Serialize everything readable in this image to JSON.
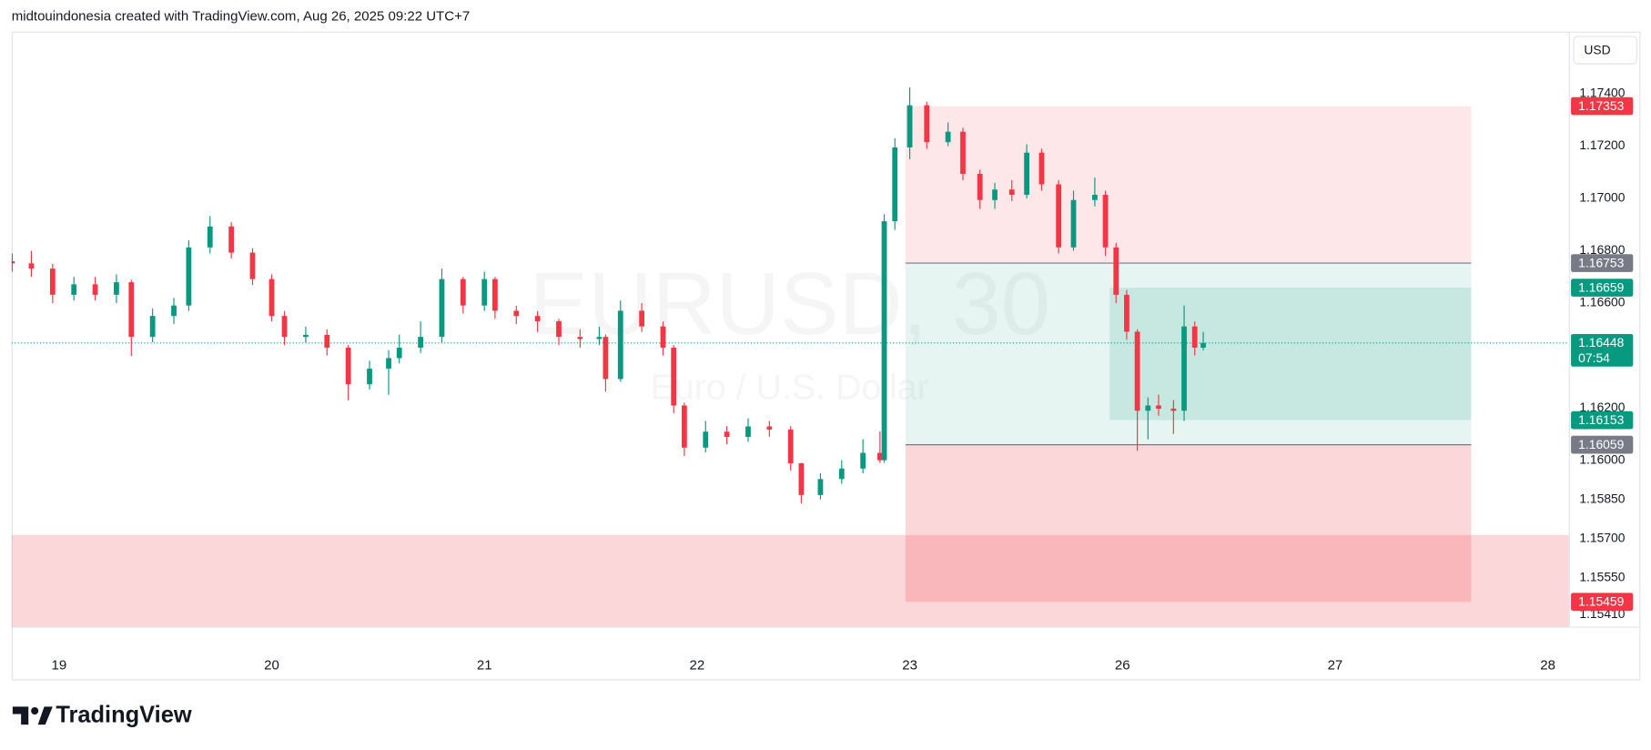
{
  "header": "midtouindonesia created with TradingView.com, Aug 26, 2025 09:22 UTC+7",
  "currency": "USD",
  "logo": "TradingView",
  "chart_data": {
    "type": "candlestick",
    "symbol": "EURUSD, 30",
    "description": "Euro / U.S. Dollar",
    "up_color": "#089981",
    "down_color": "#f23645",
    "xlim": [
      -0.223,
      7.099
    ],
    "ylim": [
      1.15364,
      1.17637
    ],
    "xticks": [
      {
        "value": 0,
        "label": "19"
      },
      {
        "value": 1,
        "label": "20"
      },
      {
        "value": 2,
        "label": "21"
      },
      {
        "value": 3,
        "label": "22"
      },
      {
        "value": 4,
        "label": "23"
      },
      {
        "value": 5,
        "label": "26"
      },
      {
        "value": 6,
        "label": "27"
      },
      {
        "value": 7,
        "label": "28"
      }
    ],
    "yticks": [
      {
        "value": 1.174,
        "label": "1.17400"
      },
      {
        "value": 1.172,
        "label": "1.17200"
      },
      {
        "value": 1.17,
        "label": "1.17000"
      },
      {
        "value": 1.168,
        "label": "1.16800"
      },
      {
        "value": 1.166,
        "label": "1.16600"
      },
      {
        "value": 1.162,
        "label": "1.16200"
      },
      {
        "value": 1.16,
        "label": "1.16000"
      },
      {
        "value": 1.1585,
        "label": "1.15850"
      },
      {
        "value": 1.157,
        "label": "1.15700"
      },
      {
        "value": 1.1555,
        "label": "1.15550"
      },
      {
        "value": 1.1541,
        "label": "1.15410"
      }
    ],
    "candles": {
      "x": [
        -0.22,
        -0.13,
        -0.03,
        0.07,
        0.17,
        0.27,
        0.34,
        0.44,
        0.54,
        0.61,
        0.71,
        0.81,
        0.91,
        1.0,
        1.06,
        1.16,
        1.26,
        1.36,
        1.46,
        1.55,
        1.6,
        1.7,
        1.8,
        1.9,
        2.0,
        2.05,
        2.15,
        2.25,
        2.35,
        2.45,
        2.54,
        2.57,
        2.64,
        2.74,
        2.84,
        2.89,
        2.94,
        3.04,
        3.14,
        3.24,
        3.34,
        3.44,
        3.49,
        3.58,
        3.68,
        3.78,
        3.86,
        3.88,
        3.93,
        4.0,
        4.08,
        4.18,
        4.25,
        4.33,
        4.4,
        4.48,
        4.55,
        4.62,
        4.7,
        4.77,
        4.87,
        4.92,
        4.97,
        5.02,
        5.07,
        5.12,
        5.17,
        5.24,
        5.29,
        5.34,
        5.38
      ],
      "open": [
        1.1676,
        1.16752,
        1.16732,
        1.16632,
        1.16672,
        1.16632,
        1.1668,
        1.16471,
        1.16551,
        1.16591,
        1.16813,
        1.16893,
        1.16793,
        1.16692,
        1.16551,
        1.16471,
        1.16479,
        1.1643,
        1.1629,
        1.1635,
        1.1639,
        1.1643,
        1.16471,
        1.16692,
        1.16591,
        1.16692,
        1.16571,
        1.16551,
        1.16531,
        1.16471,
        1.16463,
        1.16471,
        1.1631,
        1.16571,
        1.16511,
        1.1643,
        1.16209,
        1.16048,
        1.16109,
        1.16089,
        1.16129,
        1.16117,
        1.15988,
        1.15867,
        1.15928,
        1.15968,
        1.16028,
        1.16,
        1.16913,
        1.17195,
        1.17356,
        1.17215,
        1.17255,
        1.17094,
        1.16994,
        1.17034,
        1.17014,
        1.17175,
        1.17054,
        1.16813,
        1.16994,
        1.17014,
        1.16813,
        1.16632,
        1.16491,
        1.16189,
        1.16209,
        1.16197,
        1.16189,
        1.16511,
        1.1643
      ],
      "high": [
        1.1679,
        1.168,
        1.1675,
        1.167,
        1.167,
        1.1671,
        1.1669,
        1.1658,
        1.1662,
        1.1684,
        1.16933,
        1.1691,
        1.1681,
        1.1671,
        1.1657,
        1.1651,
        1.165,
        1.1644,
        1.1638,
        1.1642,
        1.1648,
        1.1653,
        1.16732,
        1.167,
        1.1672,
        1.167,
        1.1659,
        1.1657,
        1.1654,
        1.165,
        1.1651,
        1.1648,
        1.1661,
        1.166,
        1.1653,
        1.1644,
        1.1622,
        1.1615,
        1.1613,
        1.1616,
        1.1615,
        1.1613,
        1.1599,
        1.1595,
        1.16,
        1.1608,
        1.1611,
        1.1694,
        1.1723,
        1.17424,
        1.1737,
        1.1729,
        1.1727,
        1.1711,
        1.1706,
        1.1707,
        1.17207,
        1.1719,
        1.1707,
        1.1703,
        1.1708,
        1.1703,
        1.1683,
        1.1665,
        1.165,
        1.1624,
        1.1625,
        1.1623,
        1.16591,
        1.1653,
        1.1649
      ],
      "low": [
        1.1672,
        1.167,
        1.166,
        1.1661,
        1.1661,
        1.166,
        1.16398,
        1.1645,
        1.1652,
        1.1657,
        1.1679,
        1.1677,
        1.1667,
        1.1653,
        1.1644,
        1.1645,
        1.164,
        1.16229,
        1.1627,
        1.1625,
        1.1637,
        1.1641,
        1.1645,
        1.1656,
        1.1657,
        1.1654,
        1.1652,
        1.1649,
        1.1644,
        1.1643,
        1.1644,
        1.16262,
        1.163,
        1.1649,
        1.164,
        1.1618,
        1.16016,
        1.1603,
        1.1606,
        1.1607,
        1.1609,
        1.1596,
        1.15835,
        1.1585,
        1.1591,
        1.1595,
        1.1599,
        1.1599,
        1.1688,
        1.1715,
        1.1719,
        1.172,
        1.1707,
        1.1696,
        1.1696,
        1.1699,
        1.17,
        1.1703,
        1.1679,
        1.168,
        1.1697,
        1.1678,
        1.166,
        1.1646,
        1.16036,
        1.1608,
        1.1617,
        1.161,
        1.1615,
        1.164,
        1.1642
      ],
      "close": [
        1.16752,
        1.16732,
        1.16632,
        1.16672,
        1.16632,
        1.1668,
        1.16471,
        1.16551,
        1.16591,
        1.16813,
        1.16893,
        1.16793,
        1.16692,
        1.16551,
        1.16471,
        1.16479,
        1.1643,
        1.1629,
        1.1635,
        1.1639,
        1.1643,
        1.16471,
        1.16692,
        1.16591,
        1.16692,
        1.16571,
        1.16551,
        1.16531,
        1.16471,
        1.16463,
        1.16471,
        1.1631,
        1.16571,
        1.16511,
        1.1643,
        1.16209,
        1.16048,
        1.16109,
        1.16089,
        1.16129,
        1.16117,
        1.15988,
        1.15867,
        1.15928,
        1.15968,
        1.16028,
        1.16,
        1.16913,
        1.17195,
        1.17356,
        1.17215,
        1.17255,
        1.17094,
        1.16994,
        1.17034,
        1.17014,
        1.17175,
        1.17054,
        1.16813,
        1.16994,
        1.17014,
        1.16813,
        1.16632,
        1.16491,
        1.16189,
        1.16209,
        1.16197,
        1.16189,
        1.16511,
        1.1643,
        1.16448
      ]
    },
    "zones": [
      {
        "x": [
          -0.223,
          7.099
        ],
        "y": [
          1.15714,
          1.15364
        ],
        "color": "rgba(242,54,69,0.2)"
      },
      {
        "x": [
          3.98,
          6.64
        ],
        "y": [
          1.17353,
          1.16753
        ],
        "color": "rgba(242,54,69,0.12)"
      },
      {
        "x": [
          3.98,
          6.64
        ],
        "y": [
          1.16753,
          1.16059
        ],
        "color": "rgba(8,153,129,0.1)"
      },
      {
        "x": [
          4.94,
          6.64
        ],
        "y": [
          1.16659,
          1.16153
        ],
        "color": "rgba(8,153,129,0.14)"
      },
      {
        "x": [
          3.98,
          6.64
        ],
        "y": [
          1.16059,
          1.15459
        ],
        "color": "rgba(242,54,69,0.2)"
      }
    ],
    "levels": [
      {
        "value": 1.16753,
        "x": [
          3.98,
          6.64
        ]
      },
      {
        "value": 1.16059,
        "x": [
          3.98,
          6.64
        ]
      }
    ],
    "price_labels": [
      {
        "value": 1.17353,
        "color": "#f23645"
      },
      {
        "value": 1.16753,
        "color": "#787b86"
      },
      {
        "value": 1.16659,
        "color": "#089981"
      },
      {
        "value": 1.16153,
        "color": "#089981"
      },
      {
        "value": 1.16059,
        "color": "#787b86"
      },
      {
        "value": 1.15459,
        "color": "#f23645"
      }
    ],
    "last_price": {
      "value": 1.16448,
      "countdown": "07:54",
      "color": "#089981"
    }
  }
}
